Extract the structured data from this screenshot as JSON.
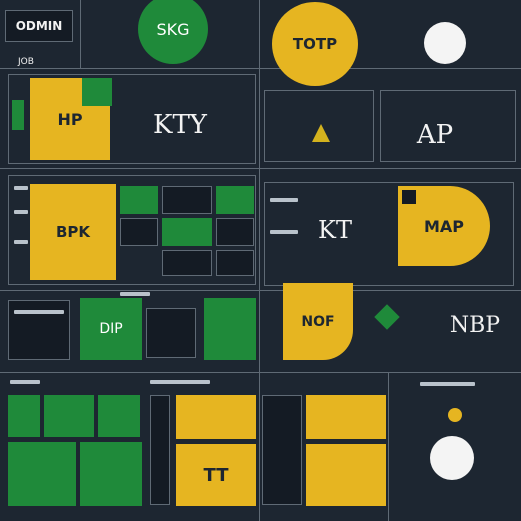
{
  "header": {
    "title": "ODMIN",
    "section": "JOB"
  },
  "tiles": {
    "top_green": "SKG",
    "top_yellow": "TOTP",
    "hp": "HP",
    "kty": "KTY",
    "ap": "AP",
    "bpk": "BPK",
    "kt": "KT",
    "map": "MAP",
    "dip": "DIP",
    "nof": "NOF",
    "nbp": "NBP",
    "tt": "TT"
  }
}
